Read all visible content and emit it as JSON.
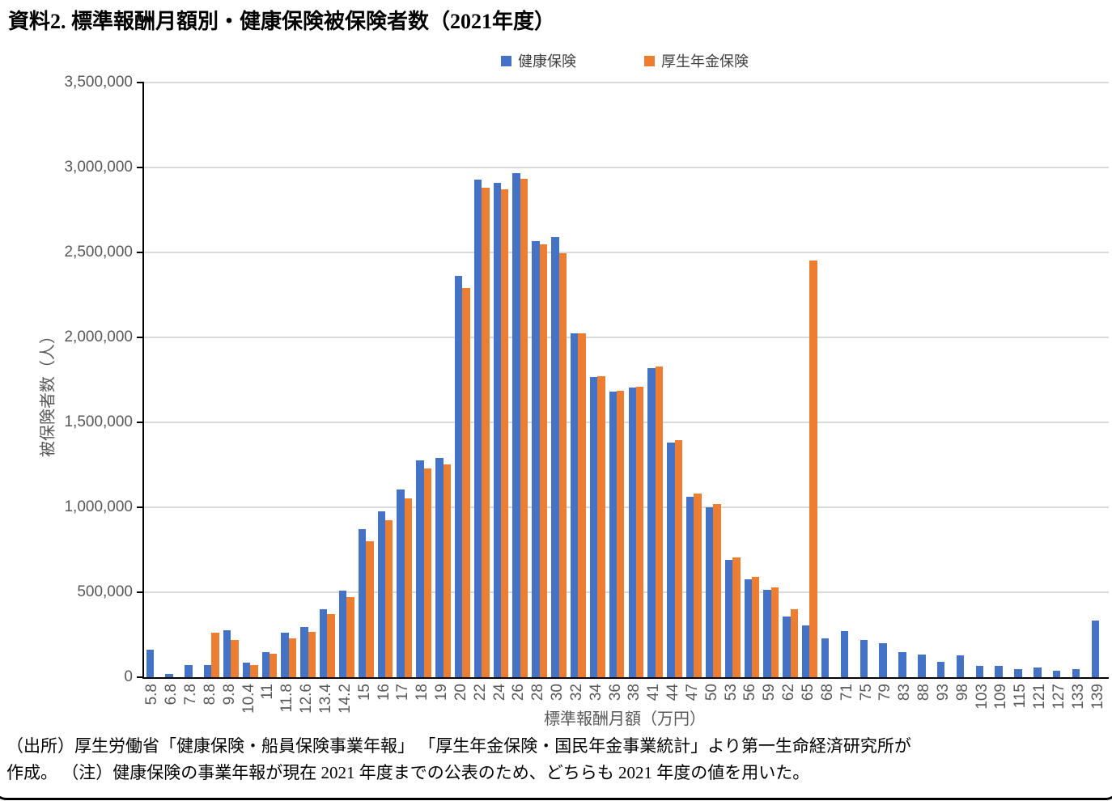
{
  "title": "資料2. 標準報酬月額別・健康保険被保険者数（2021年度）",
  "source_line1": "（出所）厚生労働省「健康保険・船員保険事業年報」 「厚生年金保険・国民年金事業統計」より第一生命経済研究所が",
  "source_line2": "作成。 （注）健康保険の事業年報が現在 2021 年度までの公表のため、どちらも 2021 年度の値を用いた。",
  "chart_data": {
    "type": "bar",
    "title": "資料2. 標準報酬月額別・健康保険被保険者数（2021年度）",
    "xlabel": "標準報酬月額（万円）",
    "ylabel": "被保険者数（人）",
    "ylim": [
      0,
      3500000
    ],
    "grid": true,
    "legend_position": "top",
    "yticks": [
      {
        "value": 0,
        "label": "0"
      },
      {
        "value": 500000,
        "label": "500,000"
      },
      {
        "value": 1000000,
        "label": "1,000,000"
      },
      {
        "value": 1500000,
        "label": "1,500,000"
      },
      {
        "value": 2000000,
        "label": "2,000,000"
      },
      {
        "value": 2500000,
        "label": "2,500,000"
      },
      {
        "value": 3000000,
        "label": "3,000,000"
      },
      {
        "value": 3500000,
        "label": "3,500,000"
      }
    ],
    "categories": [
      "5.8",
      "6.8",
      "7.8",
      "8.8",
      "9.8",
      "10.4",
      "11",
      "11.8",
      "12.6",
      "13.4",
      "14.2",
      "15",
      "16",
      "17",
      "18",
      "19",
      "20",
      "22",
      "24",
      "26",
      "28",
      "30",
      "32",
      "34",
      "36",
      "38",
      "41",
      "44",
      "47",
      "50",
      "53",
      "56",
      "59",
      "62",
      "65",
      "68",
      "71",
      "75",
      "79",
      "83",
      "88",
      "93",
      "98",
      "103",
      "109",
      "115",
      "121",
      "127",
      "133",
      "139"
    ],
    "series": [
      {
        "name": "健康保険",
        "key": "kenpo",
        "color": "#4472C4",
        "values": [
          160000,
          20000,
          70000,
          70000,
          275000,
          85000,
          150000,
          260000,
          293000,
          400000,
          508000,
          870000,
          976000,
          1103000,
          1275000,
          1290000,
          2360000,
          2930000,
          2910000,
          2965000,
          2565000,
          2590000,
          2025000,
          1768000,
          1680000,
          1703000,
          1820000,
          1380000,
          1062000,
          1000000,
          690000,
          578000,
          515000,
          355000,
          306000,
          229000,
          273000,
          218000,
          200000,
          147000,
          132000,
          91000,
          130000,
          68000,
          66000,
          48000,
          59000,
          40000,
          46000,
          332000
        ]
      },
      {
        "name": "厚生年金保険",
        "key": "kosei",
        "color": "#ED7D31",
        "values": [
          0,
          0,
          0,
          263000,
          220000,
          72000,
          137000,
          231000,
          266000,
          370000,
          471000,
          800000,
          924000,
          1051000,
          1228000,
          1251000,
          2290000,
          2880000,
          2871000,
          2934000,
          2549000,
          2494000,
          2022000,
          1771000,
          1686000,
          1709000,
          1831000,
          1397000,
          1082000,
          1020000,
          706000,
          589000,
          528000,
          398000,
          2451000,
          0,
          0,
          0,
          0,
          0,
          0,
          0,
          0,
          0,
          0,
          0,
          0,
          0,
          0,
          0
        ]
      }
    ]
  }
}
